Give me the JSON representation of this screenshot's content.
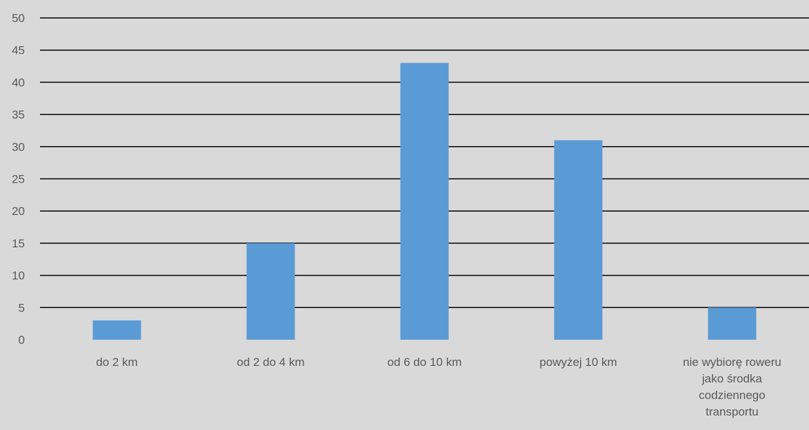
{
  "chart_data": {
    "type": "bar",
    "categories": [
      [
        "do 2 km"
      ],
      [
        "od 2 do 4 km"
      ],
      [
        "od 6 do 10 km"
      ],
      [
        "powyżej 10 km"
      ],
      [
        "nie wybiorę roweru",
        "jako środka",
        "codziennego",
        "transportu"
      ]
    ],
    "values": [
      3,
      15,
      43,
      31,
      5
    ],
    "ylim": [
      0,
      50
    ],
    "yticks": [
      0,
      5,
      10,
      15,
      20,
      25,
      30,
      35,
      40,
      45,
      50
    ],
    "grid": true,
    "bar_color": "#5b9bd5",
    "gridline_color": "#000000",
    "background_color": "#d9d9d9",
    "label_color": "#595959"
  }
}
